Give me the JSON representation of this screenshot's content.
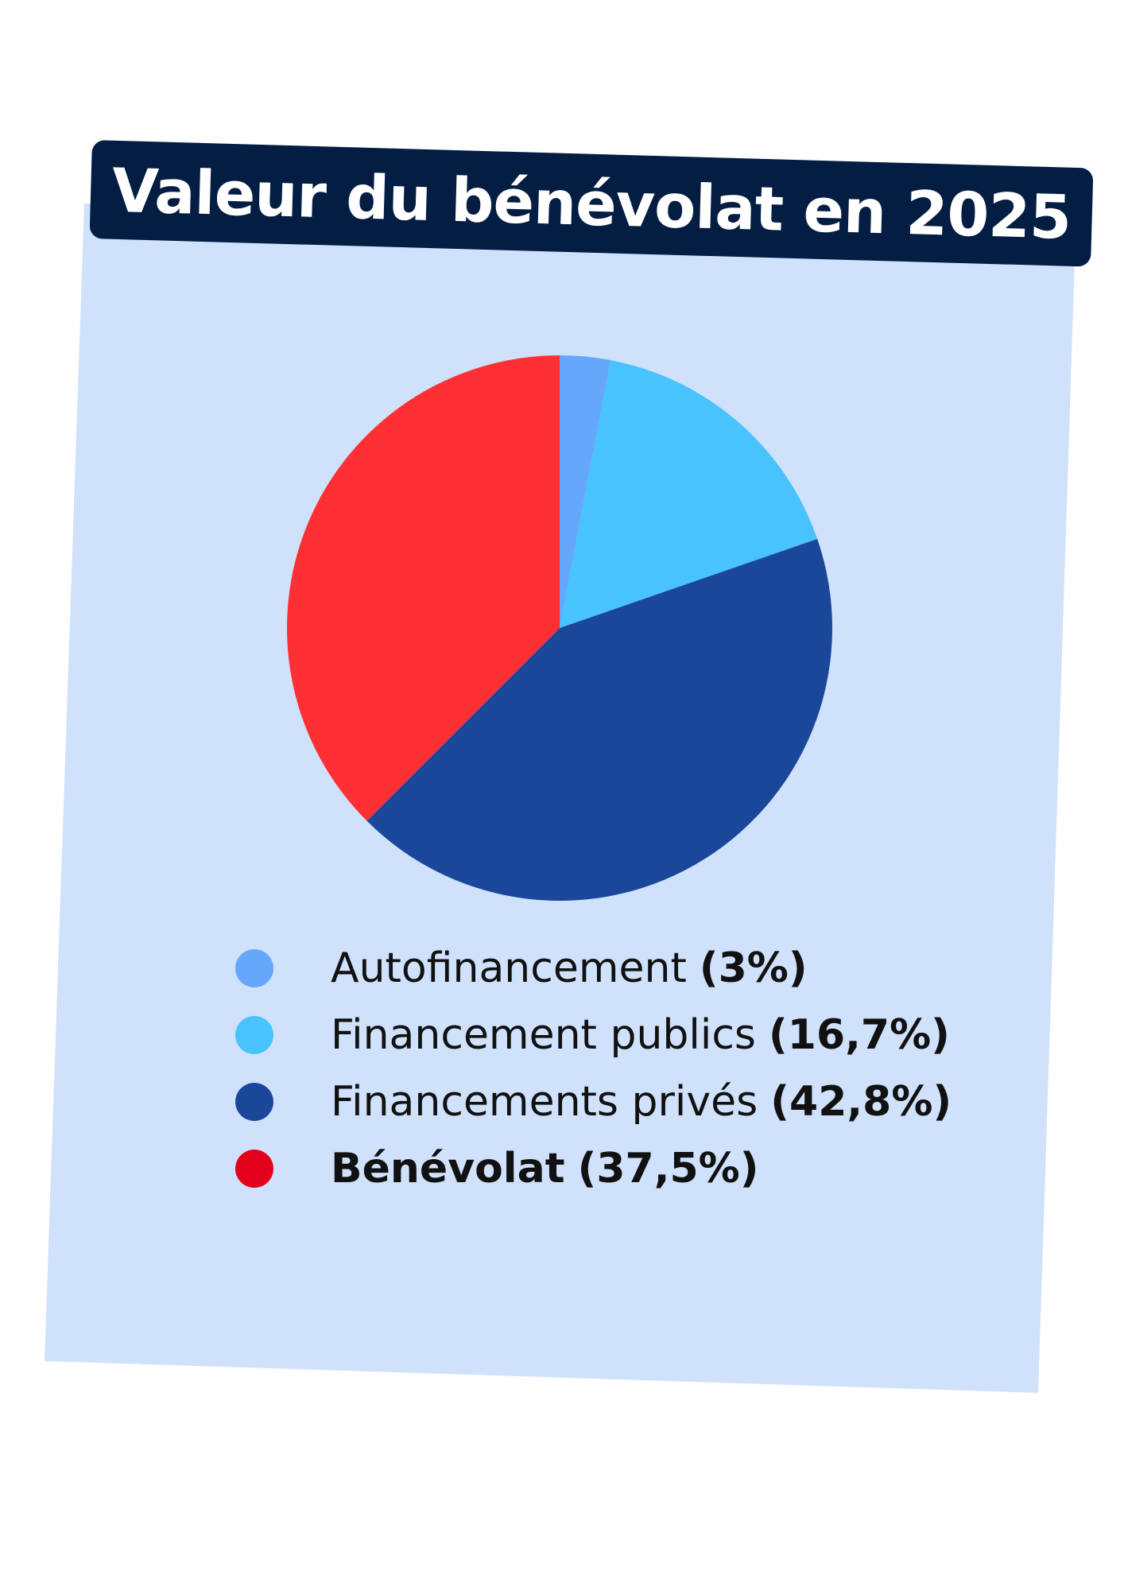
{
  "title": "Valeur du bénévolat en 2025",
  "colors": {
    "card_background": "#cfe1fb",
    "title_background": "#031d43",
    "title_text": "#ffffff",
    "legend_text": "#111111"
  },
  "chart_data": {
    "type": "pie",
    "title": "Valeur du bénévolat en 2025",
    "start_angle": "12 o'clock",
    "direction": "clockwise",
    "legend_position": "bottom",
    "slices": [
      {
        "label": "Autofinancement",
        "value": 3,
        "value_label": "(3%)",
        "color": "#64a7fb",
        "marker_color": "#64a7fb",
        "label_bold": false
      },
      {
        "label": "Financement publics",
        "value": 16.7,
        "value_label": "(16,7%)",
        "color": "#48c3fd",
        "marker_color": "#48c3fd",
        "label_bold": false
      },
      {
        "label": "Financements privés",
        "value": 42.8,
        "value_label": "(42,8%)",
        "color": "#1a4799",
        "marker_color": "#1a4799",
        "label_bold": false
      },
      {
        "label": "Bénévolat",
        "value": 37.5,
        "value_label": "(37,5%)",
        "color": "#ff3034",
        "marker_color": "#e2001b",
        "label_bold": true
      }
    ]
  }
}
